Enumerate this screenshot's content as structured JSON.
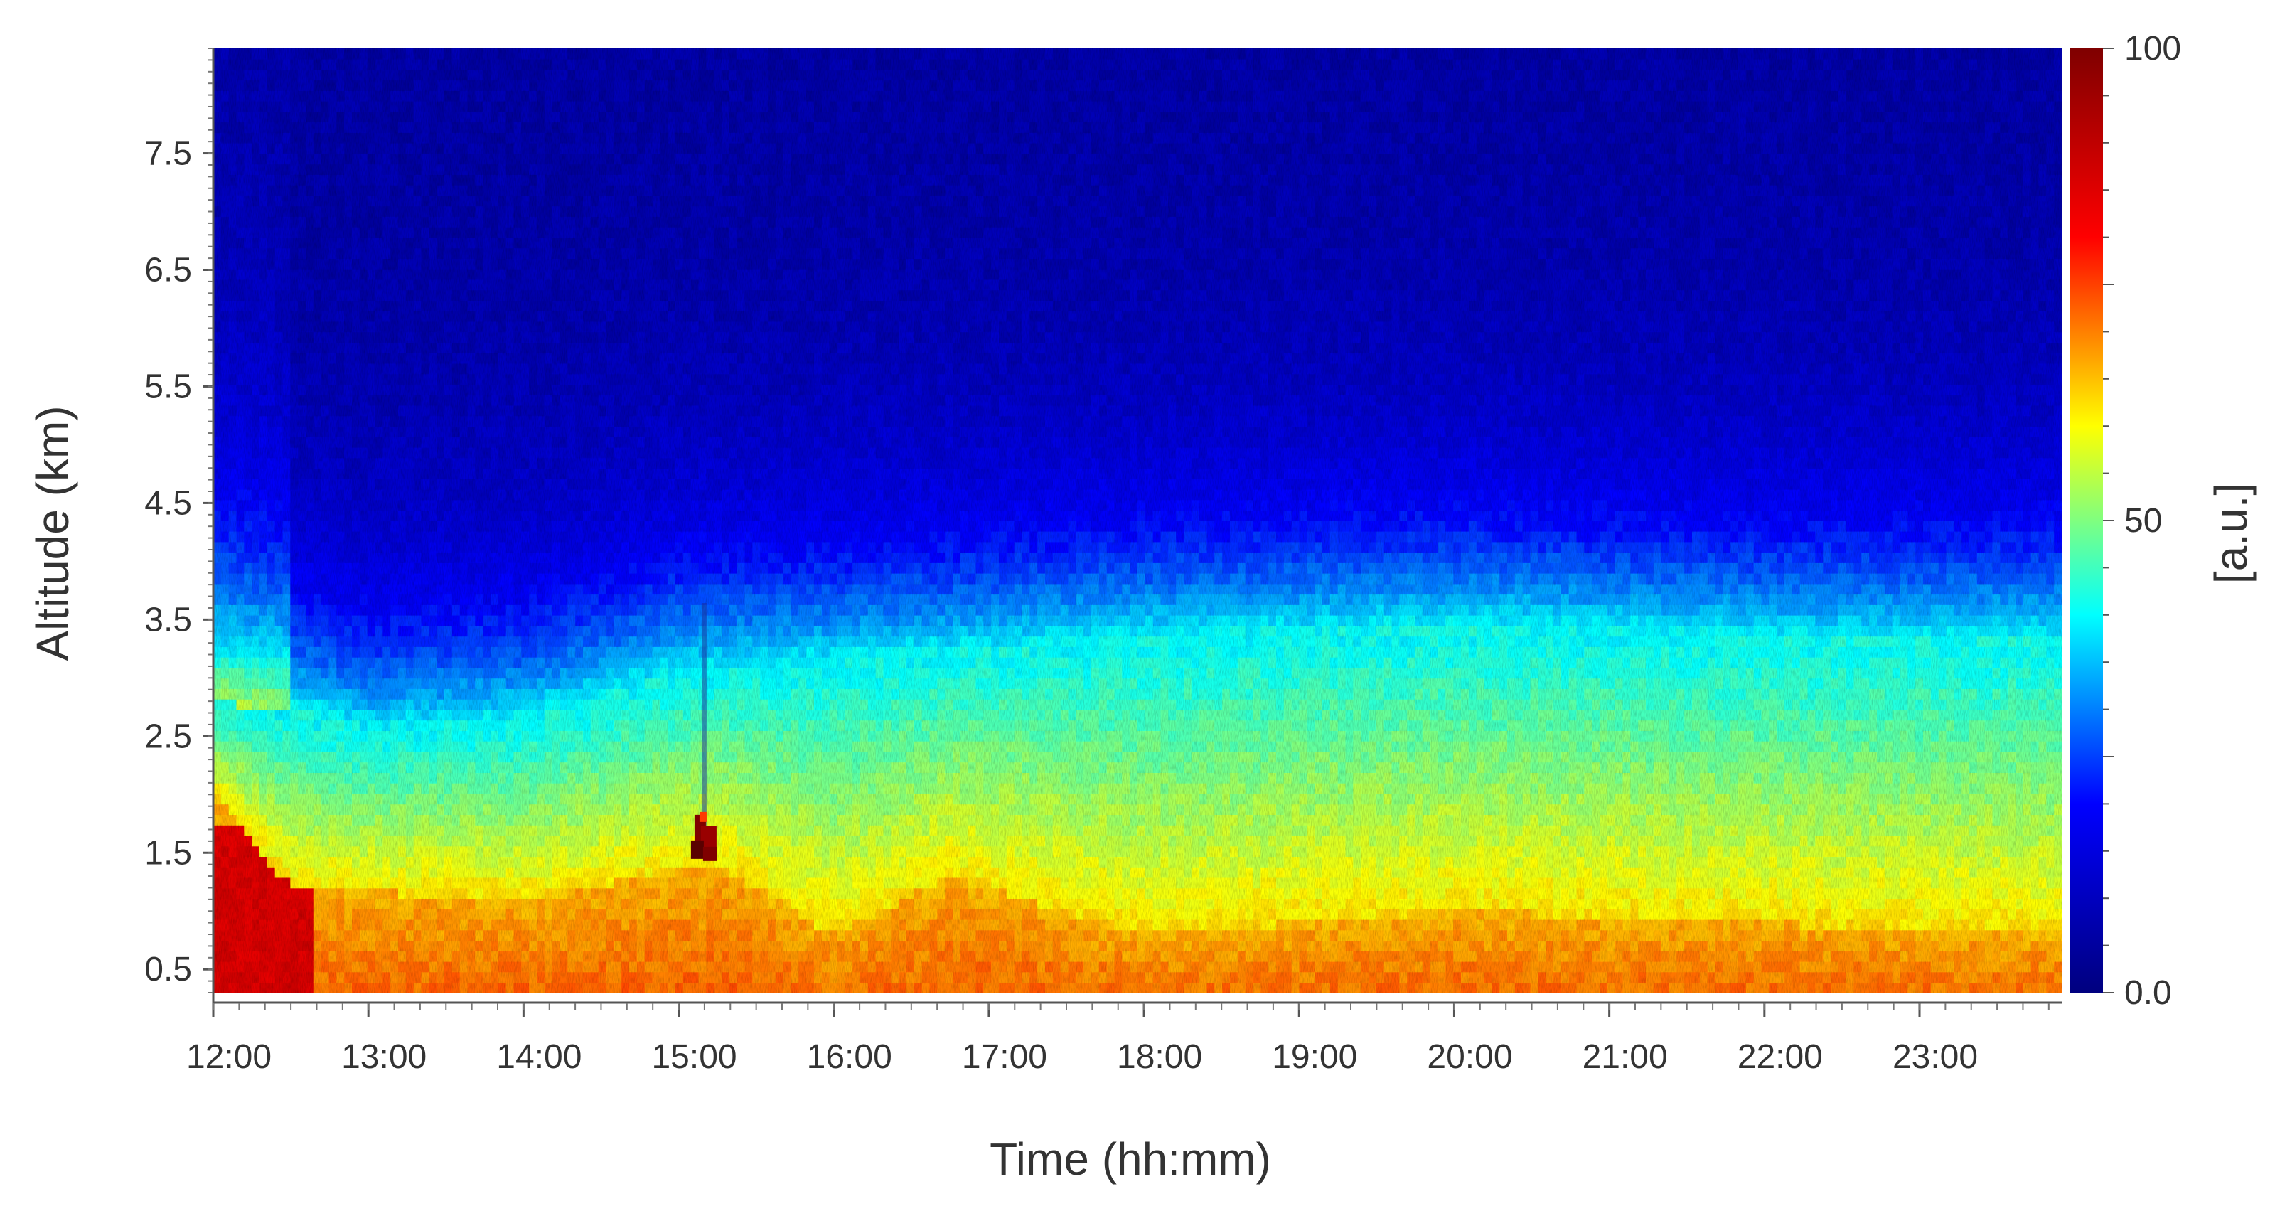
{
  "chart_data": {
    "type": "heatmap",
    "title": "",
    "xlabel": "Time (hh:mm)",
    "ylabel": "Altitude (km)",
    "colorbar_label": "[a.u.]",
    "x_ticks": [
      "12:00",
      "13:00",
      "14:00",
      "15:00",
      "16:00",
      "17:00",
      "18:00",
      "19:00",
      "20:00",
      "21:00",
      "22:00",
      "23:00"
    ],
    "x_range": [
      "12:00",
      "23:55"
    ],
    "y_ticks": [
      0.5,
      1.5,
      2.5,
      3.5,
      4.5,
      5.5,
      6.5,
      7.5
    ],
    "y_tick_labels": [
      "0.5",
      "1.5",
      "2.5",
      "3.5",
      "4.5",
      "5.5",
      "6.5",
      "7.5"
    ],
    "y_range": [
      0.3,
      8.4
    ],
    "colorbar_range": [
      0,
      100
    ],
    "colorbar_ticks": [
      "0.0",
      "50",
      "100"
    ],
    "colormap": "jet",
    "colormap_stops": [
      "#00007f",
      "#0000ff",
      "#00ffff",
      "#ffff00",
      "#ff0000",
      "#7f0000"
    ],
    "grid": false,
    "features": {
      "layer_top_km": [
        {
          "time": "12:00",
          "value": 2.8
        },
        {
          "time": "12:30",
          "value": 2.7
        },
        {
          "time": "13:00",
          "value": 2.5
        },
        {
          "time": "14:00",
          "value": 2.6
        },
        {
          "time": "15:00",
          "value": 3.0
        },
        {
          "time": "16:00",
          "value": 3.1
        },
        {
          "time": "18:00",
          "value": 3.3
        },
        {
          "time": "20:00",
          "value": 3.4
        },
        {
          "time": "22:00",
          "value": 3.3
        },
        {
          "time": "23:55",
          "value": 3.3
        }
      ],
      "high_backscatter_layer_top_km": [
        {
          "time": "12:00",
          "value": 2.0
        },
        {
          "time": "12:30",
          "value": 1.2
        },
        {
          "time": "14:00",
          "value": 1.1
        },
        {
          "time": "15:15",
          "value": 1.4
        },
        {
          "time": "16:00",
          "value": 0.8
        },
        {
          "time": "16:45",
          "value": 1.3
        },
        {
          "time": "18:00",
          "value": 0.8
        },
        {
          "time": "20:00",
          "value": 1.0
        },
        {
          "time": "23:55",
          "value": 0.8
        }
      ],
      "cloud": {
        "time": "15:10",
        "altitude_km": 1.6,
        "value": 100
      }
    }
  }
}
